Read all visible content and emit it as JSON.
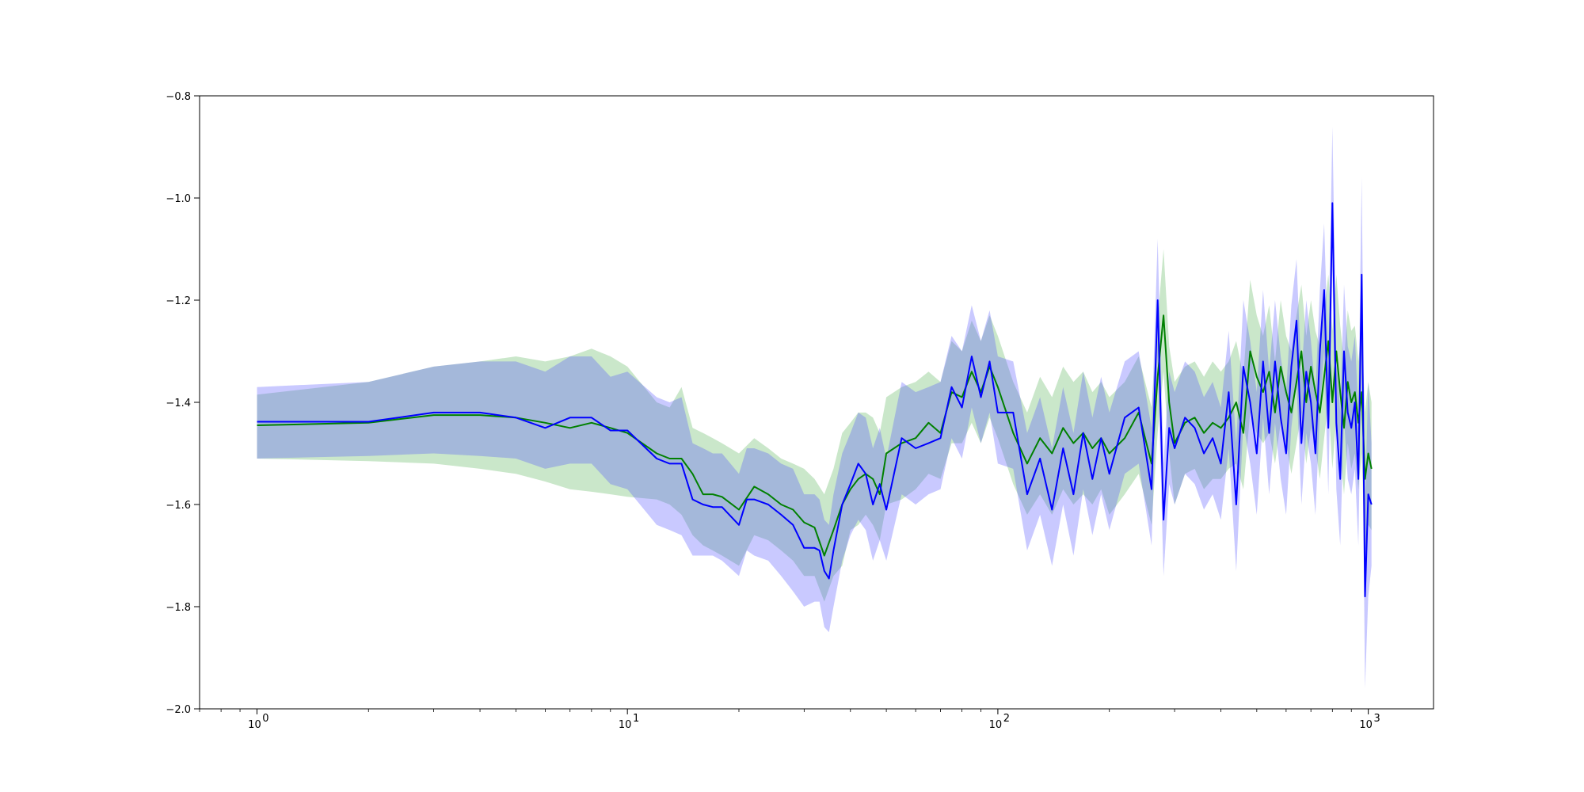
{
  "chart_data": {
    "type": "line",
    "title": "",
    "xlabel": "",
    "ylabel": "",
    "xscale": "log",
    "xlim": [
      0.7,
      1500
    ],
    "ylim": [
      -2.0,
      -0.8
    ],
    "grid": false,
    "legend": "none",
    "x_ticks": [
      {
        "value": 1,
        "label": "10",
        "exp": "0"
      },
      {
        "value": 10,
        "label": "10",
        "exp": "1"
      },
      {
        "value": 100,
        "label": "10",
        "exp": "2"
      },
      {
        "value": 1000,
        "label": "10",
        "exp": "3"
      }
    ],
    "y_ticks": [
      {
        "value": -0.8,
        "label": "−0.8"
      },
      {
        "value": -1.0,
        "label": "−1.0"
      },
      {
        "value": -1.2,
        "label": "−1.2"
      },
      {
        "value": -1.4,
        "label": "−1.4"
      },
      {
        "value": -1.6,
        "label": "−1.6"
      },
      {
        "value": -1.8,
        "label": "−1.8"
      },
      {
        "value": -2.0,
        "label": "−2.0"
      }
    ],
    "series": [
      {
        "color": "#008000",
        "band_color": "#2ca02c",
        "band_opacity": 0.25,
        "x": [
          1,
          2,
          3,
          4,
          5,
          6,
          7,
          8,
          9,
          10,
          12,
          13,
          14,
          15,
          16,
          17,
          18,
          20,
          22,
          24,
          26,
          28,
          30,
          32,
          34,
          36,
          38,
          40,
          42,
          44,
          46,
          48,
          50,
          55,
          60,
          65,
          70,
          75,
          80,
          85,
          90,
          95,
          100,
          110,
          120,
          130,
          140,
          150,
          160,
          170,
          180,
          190,
          200,
          220,
          240,
          260,
          270,
          280,
          290,
          300,
          320,
          340,
          360,
          380,
          400,
          420,
          440,
          460,
          480,
          500,
          520,
          540,
          560,
          580,
          600,
          620,
          640,
          660,
          680,
          700,
          720,
          740,
          760,
          780,
          800,
          820,
          840,
          860,
          880,
          900,
          920,
          940,
          960,
          980,
          1000,
          1020
        ],
        "y": [
          -1.445,
          -1.44,
          -1.425,
          -1.425,
          -1.43,
          -1.44,
          -1.45,
          -1.44,
          -1.45,
          -1.46,
          -1.5,
          -1.51,
          -1.51,
          -1.54,
          -1.58,
          -1.58,
          -1.585,
          -1.61,
          -1.565,
          -1.58,
          -1.6,
          -1.61,
          -1.635,
          -1.645,
          -1.7,
          -1.65,
          -1.6,
          -1.57,
          -1.55,
          -1.54,
          -1.55,
          -1.58,
          -1.5,
          -1.48,
          -1.47,
          -1.44,
          -1.46,
          -1.38,
          -1.39,
          -1.34,
          -1.38,
          -1.33,
          -1.37,
          -1.46,
          -1.52,
          -1.47,
          -1.5,
          -1.45,
          -1.48,
          -1.46,
          -1.49,
          -1.47,
          -1.5,
          -1.47,
          -1.42,
          -1.52,
          -1.35,
          -1.23,
          -1.4,
          -1.48,
          -1.44,
          -1.43,
          -1.46,
          -1.44,
          -1.45,
          -1.43,
          -1.4,
          -1.46,
          -1.3,
          -1.35,
          -1.38,
          -1.34,
          -1.42,
          -1.33,
          -1.38,
          -1.42,
          -1.36,
          -1.3,
          -1.4,
          -1.33,
          -1.38,
          -1.42,
          -1.35,
          -1.28,
          -1.4,
          -1.3,
          -1.38,
          -1.45,
          -1.36,
          -1.4,
          -1.38,
          -1.44,
          -1.38,
          -1.55,
          -1.5,
          -1.53
        ],
        "y_low": [
          -1.51,
          -1.515,
          -1.52,
          -1.53,
          -1.54,
          -1.555,
          -1.57,
          -1.575,
          -1.58,
          -1.585,
          -1.59,
          -1.6,
          -1.62,
          -1.66,
          -1.68,
          -1.69,
          -1.7,
          -1.72,
          -1.66,
          -1.67,
          -1.69,
          -1.71,
          -1.74,
          -1.74,
          -1.79,
          -1.74,
          -1.72,
          -1.65,
          -1.64,
          -1.62,
          -1.64,
          -1.67,
          -1.6,
          -1.59,
          -1.57,
          -1.54,
          -1.55,
          -1.48,
          -1.48,
          -1.44,
          -1.48,
          -1.43,
          -1.47,
          -1.56,
          -1.62,
          -1.58,
          -1.62,
          -1.57,
          -1.6,
          -1.58,
          -1.6,
          -1.57,
          -1.62,
          -1.58,
          -1.54,
          -1.64,
          -1.46,
          -1.34,
          -1.5,
          -1.6,
          -1.54,
          -1.53,
          -1.57,
          -1.55,
          -1.55,
          -1.53,
          -1.52,
          -1.57,
          -1.42,
          -1.46,
          -1.48,
          -1.46,
          -1.52,
          -1.44,
          -1.48,
          -1.54,
          -1.48,
          -1.42,
          -1.52,
          -1.45,
          -1.49,
          -1.55,
          -1.47,
          -1.4,
          -1.53,
          -1.43,
          -1.5,
          -1.58,
          -1.48,
          -1.53,
          -1.5,
          -1.57,
          -1.5,
          -1.7,
          -1.64,
          -1.65
        ],
        "y_high": [
          -1.385,
          -1.36,
          -1.33,
          -1.32,
          -1.31,
          -1.32,
          -1.31,
          -1.295,
          -1.31,
          -1.33,
          -1.4,
          -1.41,
          -1.37,
          -1.45,
          -1.46,
          -1.47,
          -1.48,
          -1.5,
          -1.47,
          -1.49,
          -1.51,
          -1.52,
          -1.53,
          -1.55,
          -1.58,
          -1.53,
          -1.46,
          -1.44,
          -1.42,
          -1.42,
          -1.43,
          -1.46,
          -1.39,
          -1.37,
          -1.36,
          -1.34,
          -1.36,
          -1.28,
          -1.3,
          -1.24,
          -1.28,
          -1.23,
          -1.27,
          -1.36,
          -1.42,
          -1.35,
          -1.39,
          -1.33,
          -1.36,
          -1.34,
          -1.38,
          -1.36,
          -1.39,
          -1.36,
          -1.31,
          -1.41,
          -1.24,
          -1.1,
          -1.29,
          -1.36,
          -1.33,
          -1.32,
          -1.35,
          -1.32,
          -1.34,
          -1.32,
          -1.28,
          -1.35,
          -1.16,
          -1.23,
          -1.27,
          -1.21,
          -1.32,
          -1.2,
          -1.27,
          -1.3,
          -1.23,
          -1.17,
          -1.27,
          -1.2,
          -1.26,
          -1.29,
          -1.22,
          -1.15,
          -1.26,
          -1.15,
          -1.25,
          -1.32,
          -1.22,
          -1.26,
          -1.25,
          -1.32,
          -1.25,
          -1.42,
          -1.36,
          -1.4
        ]
      },
      {
        "color": "#0000ff",
        "band_color": "#4c4cff",
        "band_opacity": 0.3,
        "x": [
          1,
          2,
          3,
          4,
          5,
          6,
          7,
          8,
          9,
          10,
          12,
          13,
          14,
          15,
          16,
          17,
          18,
          20,
          21,
          22,
          24,
          26,
          28,
          30,
          32,
          33,
          34,
          35,
          36,
          38,
          40,
          42,
          44,
          46,
          48,
          50,
          55,
          60,
          65,
          70,
          75,
          80,
          85,
          90,
          95,
          100,
          110,
          120,
          130,
          140,
          150,
          160,
          170,
          180,
          190,
          200,
          220,
          240,
          260,
          270,
          280,
          290,
          300,
          320,
          340,
          360,
          380,
          400,
          420,
          440,
          460,
          480,
          500,
          520,
          540,
          560,
          580,
          600,
          620,
          640,
          660,
          680,
          700,
          720,
          740,
          760,
          780,
          800,
          820,
          840,
          860,
          880,
          900,
          920,
          940,
          960,
          980,
          1000,
          1020
        ],
        "y": [
          -1.438,
          -1.438,
          -1.42,
          -1.42,
          -1.43,
          -1.45,
          -1.43,
          -1.43,
          -1.455,
          -1.455,
          -1.51,
          -1.52,
          -1.52,
          -1.59,
          -1.6,
          -1.605,
          -1.605,
          -1.64,
          -1.59,
          -1.59,
          -1.6,
          -1.62,
          -1.64,
          -1.685,
          -1.685,
          -1.69,
          -1.73,
          -1.745,
          -1.69,
          -1.6,
          -1.56,
          -1.52,
          -1.54,
          -1.6,
          -1.56,
          -1.61,
          -1.47,
          -1.49,
          -1.48,
          -1.47,
          -1.37,
          -1.41,
          -1.31,
          -1.39,
          -1.32,
          -1.42,
          -1.42,
          -1.58,
          -1.51,
          -1.61,
          -1.49,
          -1.58,
          -1.46,
          -1.55,
          -1.47,
          -1.54,
          -1.43,
          -1.41,
          -1.57,
          -1.2,
          -1.63,
          -1.45,
          -1.49,
          -1.43,
          -1.45,
          -1.5,
          -1.47,
          -1.52,
          -1.38,
          -1.6,
          -1.33,
          -1.4,
          -1.5,
          -1.32,
          -1.46,
          -1.32,
          -1.43,
          -1.5,
          -1.33,
          -1.24,
          -1.48,
          -1.34,
          -1.4,
          -1.5,
          -1.3,
          -1.18,
          -1.45,
          -1.01,
          -1.44,
          -1.55,
          -1.3,
          -1.42,
          -1.45,
          -1.4,
          -1.55,
          -1.15,
          -1.78,
          -1.58,
          -1.6
        ],
        "y_low": [
          -1.51,
          -1.505,
          -1.5,
          -1.505,
          -1.51,
          -1.53,
          -1.52,
          -1.52,
          -1.56,
          -1.57,
          -1.64,
          -1.65,
          -1.66,
          -1.7,
          -1.7,
          -1.7,
          -1.71,
          -1.74,
          -1.69,
          -1.7,
          -1.71,
          -1.74,
          -1.77,
          -1.8,
          -1.79,
          -1.79,
          -1.84,
          -1.85,
          -1.8,
          -1.71,
          -1.66,
          -1.63,
          -1.65,
          -1.71,
          -1.67,
          -1.71,
          -1.58,
          -1.6,
          -1.58,
          -1.57,
          -1.47,
          -1.51,
          -1.41,
          -1.48,
          -1.42,
          -1.52,
          -1.53,
          -1.69,
          -1.62,
          -1.72,
          -1.6,
          -1.7,
          -1.57,
          -1.66,
          -1.58,
          -1.65,
          -1.54,
          -1.52,
          -1.68,
          -1.31,
          -1.74,
          -1.56,
          -1.6,
          -1.54,
          -1.56,
          -1.61,
          -1.58,
          -1.63,
          -1.49,
          -1.73,
          -1.44,
          -1.52,
          -1.62,
          -1.43,
          -1.58,
          -1.44,
          -1.55,
          -1.62,
          -1.45,
          -1.36,
          -1.6,
          -1.46,
          -1.52,
          -1.62,
          -1.42,
          -1.3,
          -1.58,
          -1.14,
          -1.57,
          -1.68,
          -1.43,
          -1.55,
          -1.58,
          -1.53,
          -1.68,
          -1.28,
          -1.96,
          -1.78,
          -1.72
        ],
        "y_high": [
          -1.37,
          -1.36,
          -1.33,
          -1.32,
          -1.32,
          -1.34,
          -1.31,
          -1.31,
          -1.35,
          -1.34,
          -1.39,
          -1.4,
          -1.39,
          -1.48,
          -1.49,
          -1.5,
          -1.5,
          -1.54,
          -1.49,
          -1.49,
          -1.5,
          -1.52,
          -1.53,
          -1.58,
          -1.58,
          -1.59,
          -1.63,
          -1.64,
          -1.58,
          -1.5,
          -1.46,
          -1.42,
          -1.43,
          -1.49,
          -1.45,
          -1.51,
          -1.36,
          -1.38,
          -1.37,
          -1.36,
          -1.27,
          -1.3,
          -1.21,
          -1.28,
          -1.22,
          -1.31,
          -1.32,
          -1.46,
          -1.39,
          -1.49,
          -1.37,
          -1.46,
          -1.34,
          -1.43,
          -1.35,
          -1.42,
          -1.32,
          -1.3,
          -1.45,
          -1.08,
          -1.52,
          -1.34,
          -1.38,
          -1.32,
          -1.34,
          -1.39,
          -1.36,
          -1.41,
          -1.26,
          -1.48,
          -1.2,
          -1.28,
          -1.38,
          -1.18,
          -1.34,
          -1.2,
          -1.31,
          -1.38,
          -1.21,
          -1.12,
          -1.35,
          -1.2,
          -1.28,
          -1.38,
          -1.18,
          -1.05,
          -1.32,
          -0.86,
          -1.31,
          -1.42,
          -1.17,
          -1.29,
          -1.32,
          -1.27,
          -1.42,
          -0.96,
          -1.6,
          -1.36,
          -1.48
        ]
      }
    ]
  }
}
